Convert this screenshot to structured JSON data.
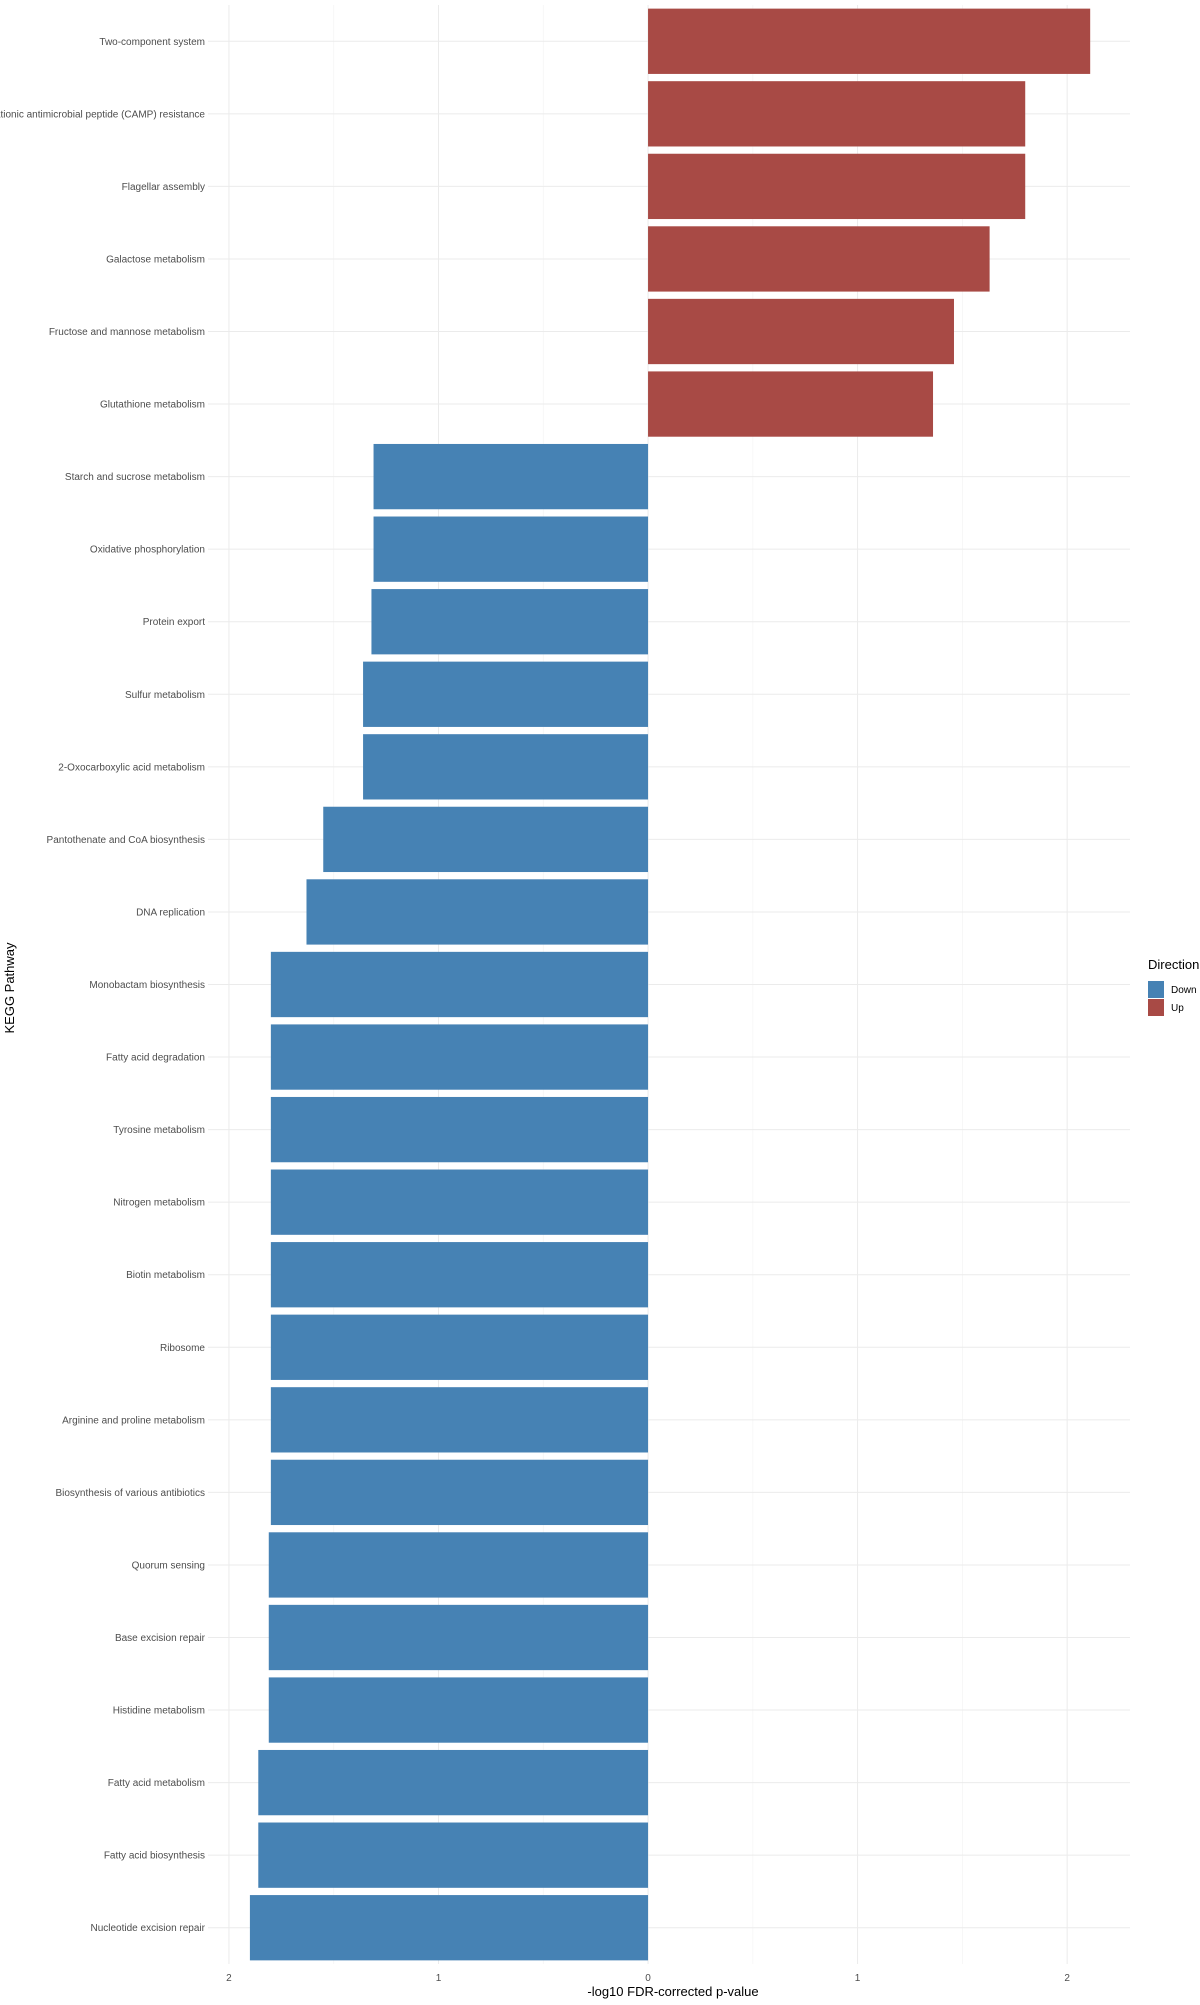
{
  "chart_data": {
    "type": "bar",
    "orientation": "horizontal",
    "xlabel": "-log10 FDR-corrected p-value",
    "ylabel": "KEGG Pathway",
    "x_axis": "absolute value on both sides of 0",
    "xlim": [
      -2.1,
      2.3
    ],
    "xticks": [
      -2,
      -1,
      0,
      1,
      2
    ],
    "xtick_labels": [
      "2",
      "1",
      "0",
      "1",
      "2"
    ],
    "grid": true,
    "legend": {
      "title": "Direction",
      "position": "right",
      "entries": [
        {
          "label": "Down",
          "color": "#4682B4"
        },
        {
          "label": "Up",
          "color": "#A84A45"
        }
      ]
    },
    "categories": [
      "Two-component system",
      "Cationic antimicrobial peptide (CAMP) resistance",
      "Flagellar assembly",
      "Galactose metabolism",
      "Fructose and mannose metabolism",
      "Glutathione metabolism",
      "Starch and sucrose metabolism",
      "Oxidative phosphorylation",
      "Protein export",
      "Sulfur metabolism",
      "2-Oxocarboxylic acid metabolism",
      "Pantothenate and CoA biosynthesis",
      "DNA replication",
      "Monobactam biosynthesis",
      "Fatty acid degradation",
      "Tyrosine metabolism",
      "Nitrogen metabolism",
      "Biotin metabolism",
      "Ribosome",
      "Arginine and proline metabolism",
      "Biosynthesis of various antibiotics",
      "Quorum sensing",
      "Base excision repair",
      "Histidine metabolism",
      "Fatty acid metabolism",
      "Fatty acid biosynthesis",
      "Nucleotide excision repair"
    ],
    "values": [
      2.11,
      1.8,
      1.8,
      1.63,
      1.46,
      1.36,
      -1.31,
      -1.31,
      -1.32,
      -1.36,
      -1.36,
      -1.55,
      -1.63,
      -1.8,
      -1.8,
      -1.8,
      -1.8,
      -1.8,
      -1.8,
      -1.8,
      -1.8,
      -1.81,
      -1.81,
      -1.81,
      -1.86,
      -1.86,
      -1.9
    ],
    "direction": [
      "Up",
      "Up",
      "Up",
      "Up",
      "Up",
      "Up",
      "Down",
      "Down",
      "Down",
      "Down",
      "Down",
      "Down",
      "Down",
      "Down",
      "Down",
      "Down",
      "Down",
      "Down",
      "Down",
      "Down",
      "Down",
      "Down",
      "Down",
      "Down",
      "Down",
      "Down",
      "Down"
    ]
  }
}
